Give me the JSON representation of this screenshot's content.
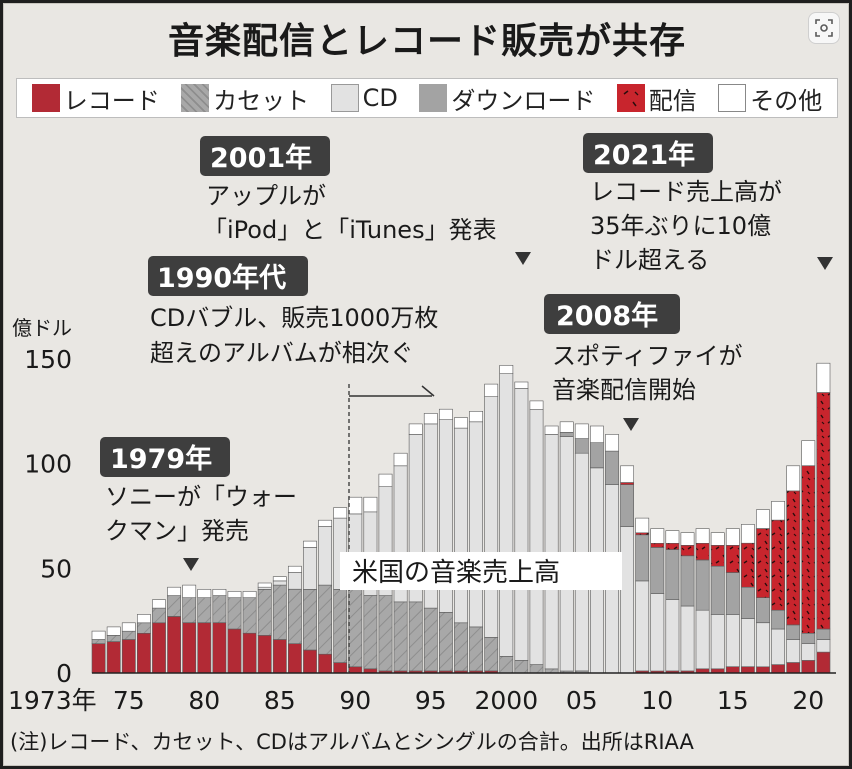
{
  "title": "音楽配信とレコード販売が共存",
  "legend": [
    {
      "label": "レコード",
      "key": "record"
    },
    {
      "label": "カセット",
      "key": "cassette"
    },
    {
      "label": "CD",
      "key": "cd"
    },
    {
      "label": "ダウンロード",
      "key": "download"
    },
    {
      "label": "配信",
      "key": "streaming"
    },
    {
      "label": "その他",
      "key": "other"
    }
  ],
  "colors": {
    "record": "#b22a35",
    "cassette": "#a8a8a8",
    "cd": "#e2e2e2",
    "download": "#a3a3a3",
    "streaming": "#c8252d",
    "other": "#ffffff"
  },
  "annotations": [
    {
      "badge": "2001年",
      "text": [
        "アップルが",
        "「iPod」と「iTunes」発表"
      ]
    },
    {
      "badge": "2021年",
      "text": [
        "レコード売上高が",
        "35年ぶりに10億",
        "ドル超える"
      ]
    },
    {
      "badge": "1990年代",
      "text": [
        "CDバブル、販売1000万枚",
        "超えのアルバムが相次ぐ"
      ]
    },
    {
      "badge": "2008年",
      "text": [
        "スポティファイが",
        "音楽配信開始"
      ]
    },
    {
      "badge": "1979年",
      "text": [
        "ソニーが「ウォー",
        "クマン」発売"
      ]
    }
  ],
  "center_label": "米国の音楽売上高",
  "footnote": "(注)レコード、カセット、CDはアルバムとシングルの合計。出所はRIAA",
  "chart_data": {
    "type": "bar",
    "stacked": true,
    "ylabel": "億ドル",
    "ylim": [
      0,
      150
    ],
    "yticks": [
      0,
      50,
      100,
      150
    ],
    "xtick_labels": [
      {
        "year": 1973,
        "label": "1973年"
      },
      {
        "year": 1975,
        "label": "75"
      },
      {
        "year": 1980,
        "label": "80"
      },
      {
        "year": 1985,
        "label": "85"
      },
      {
        "year": 1990,
        "label": "90"
      },
      {
        "year": 1995,
        "label": "95"
      },
      {
        "year": 2000,
        "label": "2000"
      },
      {
        "year": 2005,
        "label": "05"
      },
      {
        "year": 2010,
        "label": "10"
      },
      {
        "year": 2015,
        "label": "15"
      },
      {
        "year": 2020,
        "label": "20"
      }
    ],
    "categories": [
      1973,
      1974,
      1975,
      1976,
      1977,
      1978,
      1979,
      1980,
      1981,
      1982,
      1983,
      1984,
      1985,
      1986,
      1987,
      1988,
      1989,
      1990,
      1991,
      1992,
      1993,
      1994,
      1995,
      1996,
      1997,
      1998,
      1999,
      2000,
      2001,
      2002,
      2003,
      2004,
      2005,
      2006,
      2007,
      2008,
      2009,
      2010,
      2011,
      2012,
      2013,
      2014,
      2015,
      2016,
      2017,
      2018,
      2019,
      2020,
      2021
    ],
    "series": [
      {
        "name": "レコード",
        "key": "record",
        "values": [
          14,
          15,
          16,
          19,
          24,
          27,
          24,
          24,
          24,
          21,
          19,
          18,
          16,
          14,
          11,
          9,
          5,
          3,
          2,
          1,
          1,
          1,
          1,
          1,
          1,
          1,
          1,
          0,
          0,
          0,
          0,
          0,
          0,
          0,
          0,
          0,
          1,
          1,
          1,
          1,
          2,
          2,
          3,
          3,
          3,
          4,
          5,
          6,
          10
        ]
      },
      {
        "name": "カセット",
        "key": "cassette",
        "values": [
          2,
          3,
          4,
          5,
          7,
          10,
          12,
          12,
          13,
          15,
          17,
          22,
          26,
          26,
          29,
          33,
          35,
          37,
          35,
          36,
          33,
          33,
          30,
          28,
          23,
          21,
          16,
          8,
          6,
          4,
          2,
          1,
          1,
          0,
          0,
          0,
          0,
          0,
          0,
          0,
          0,
          0,
          0,
          0,
          0,
          0,
          0,
          0,
          0
        ]
      },
      {
        "name": "CD",
        "key": "cd",
        "values": [
          0,
          0,
          0,
          0,
          0,
          0,
          0,
          0,
          0,
          0,
          0,
          1,
          2,
          8,
          20,
          28,
          34,
          36,
          40,
          52,
          65,
          80,
          88,
          92,
          93,
          98,
          115,
          135,
          130,
          122,
          112,
          112,
          104,
          98,
          90,
          70,
          43,
          37,
          34,
          31,
          28,
          26,
          25,
          23,
          21,
          17,
          11,
          8,
          6
        ]
      },
      {
        "name": "ダウンロード",
        "key": "download",
        "values": [
          0,
          0,
          0,
          0,
          0,
          0,
          0,
          0,
          0,
          0,
          0,
          0,
          0,
          0,
          0,
          0,
          0,
          0,
          0,
          0,
          0,
          0,
          0,
          0,
          0,
          0,
          0,
          0,
          0,
          0,
          0,
          2,
          7,
          12,
          16,
          20,
          22,
          22,
          24,
          24,
          24,
          23,
          20,
          15,
          12,
          9,
          7,
          5,
          5
        ]
      },
      {
        "name": "配信",
        "key": "streaming",
        "values": [
          0,
          0,
          0,
          0,
          0,
          0,
          0,
          0,
          0,
          0,
          0,
          0,
          0,
          0,
          0,
          0,
          0,
          0,
          0,
          0,
          0,
          0,
          0,
          0,
          0,
          0,
          0,
          0,
          0,
          0,
          0,
          0,
          0,
          0,
          0,
          1,
          1,
          2,
          3,
          5,
          8,
          10,
          13,
          21,
          33,
          43,
          64,
          80,
          113
        ]
      },
      {
        "name": "その他",
        "key": "other",
        "values": [
          4,
          4,
          4,
          4,
          4,
          4,
          6,
          4,
          3,
          3,
          3,
          2,
          2,
          3,
          3,
          3,
          5,
          8,
          7,
          6,
          6,
          5,
          5,
          5,
          5,
          5,
          6,
          4,
          3,
          4,
          4,
          5,
          7,
          8,
          8,
          8,
          7,
          7,
          6,
          6,
          7,
          6,
          8,
          9,
          9,
          9,
          12,
          12,
          14
        ]
      }
    ]
  }
}
